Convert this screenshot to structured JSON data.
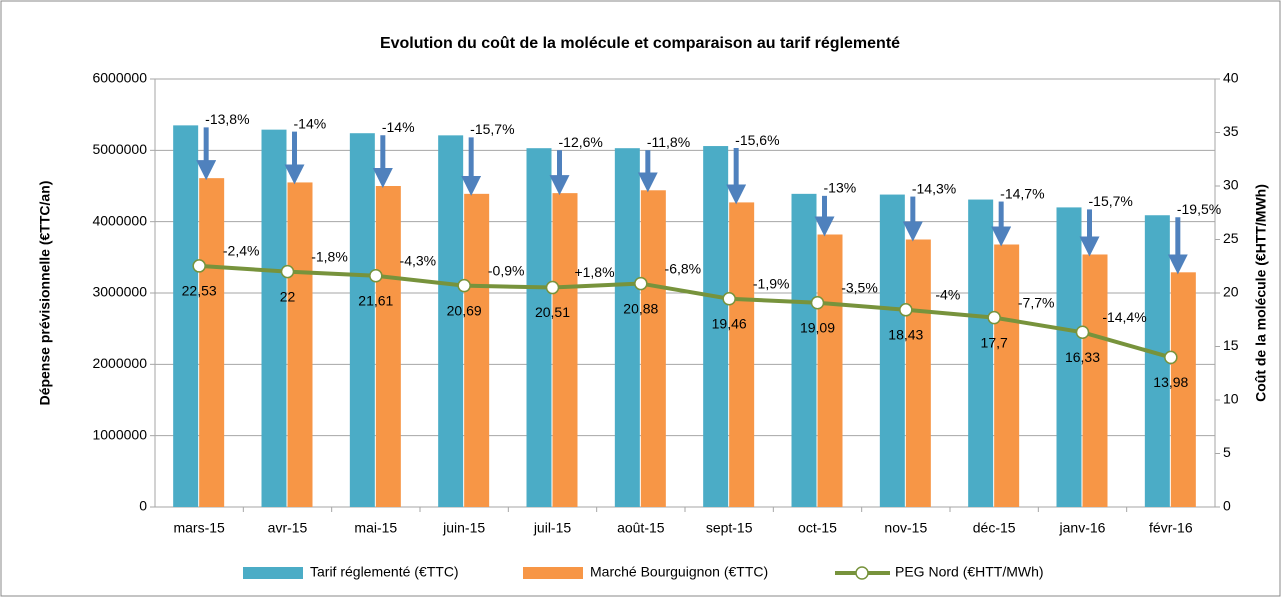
{
  "chart_data": {
    "type": "bar",
    "title": "Evolution du coût de la molécule et comparaison au tarif réglementé",
    "y_label": "Dépense prévisionnelle (€TTC/an)",
    "y2_label": "Coût de la molécule (€HTT/MWh)",
    "categories": [
      "mars-15",
      "avr-15",
      "mai-15",
      "juin-15",
      "juil-15",
      "août-15",
      "sept-15",
      "oct-15",
      "nov-15",
      "déc-15",
      "janv-16",
      "févr-16"
    ],
    "series": [
      {
        "name": "Tarif réglementé (€TTC)",
        "color": "#4bacc6",
        "values": [
          5350000,
          5290000,
          5240000,
          5210000,
          5030000,
          5030000,
          5060000,
          4390000,
          4380000,
          4310000,
          4200000,
          4090000
        ]
      },
      {
        "name": "Marché Bourguignon (€TTC)",
        "color": "#f79646",
        "values": [
          4610000,
          4550000,
          4500000,
          4390000,
          4400000,
          4440000,
          4270000,
          3820000,
          3750000,
          3680000,
          3540000,
          3290000
        ],
        "change_labels": [
          "-13,8%",
          "-14%",
          "-14%",
          "-15,7%",
          "-12,6%",
          "-11,8%",
          "-15,6%",
          "-13%",
          "-14,3%",
          "-14,7%",
          "-15,7%",
          "-19,5%"
        ]
      },
      {
        "name": "PEG Nord (€HTT/MWh)",
        "color": "#77933c",
        "type": "line",
        "axis": "y2",
        "values": [
          22.53,
          22,
          21.61,
          20.69,
          20.51,
          20.88,
          19.46,
          19.09,
          18.43,
          17.7,
          16.33,
          13.98
        ],
        "value_labels": [
          "22,53",
          "22",
          "21,61",
          "20,69",
          "20,51",
          "20,88",
          "19,46",
          "19,09",
          "18,43",
          "17,7",
          "16,33",
          "13,98"
        ],
        "change_labels": [
          "-2,4%",
          "-1,8%",
          "-4,3%",
          "-0,9%",
          "+1,8%",
          "-6,8%",
          "-1,9%",
          "-3,5%",
          "-4%",
          "-7,7%",
          "-14,4%"
        ]
      }
    ],
    "ylim": [
      0,
      6000000
    ],
    "yticks": [
      0,
      1000000,
      2000000,
      3000000,
      4000000,
      5000000,
      6000000
    ],
    "y2lim": [
      0,
      40
    ],
    "y2ticks": [
      0,
      5,
      10,
      15,
      20,
      25,
      30,
      35,
      40
    ],
    "grid": true,
    "legend": "bottom"
  }
}
